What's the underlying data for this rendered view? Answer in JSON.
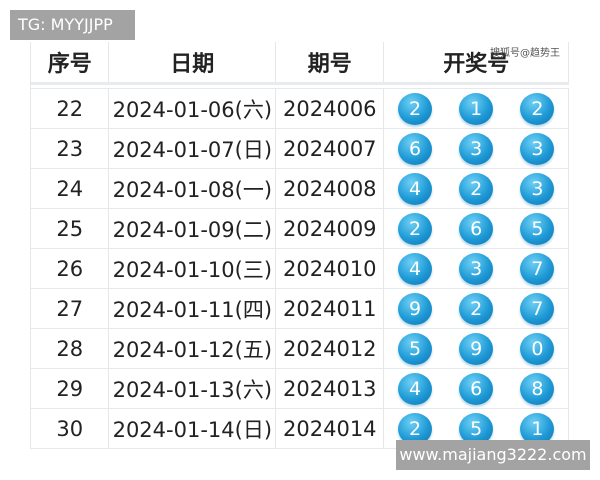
{
  "watermark_tg": "TG: MYYJJPP",
  "watermark_site": "www.majiang3222.com",
  "watermark_sohu": "搜狐号@趋势王",
  "headers": [
    "序号",
    "日期",
    "期号",
    "开奖号"
  ],
  "rows": [
    {
      "no": "22",
      "date": "2024-01-06(六)",
      "issue": "2024006",
      "balls": [
        "2",
        "1",
        "2"
      ]
    },
    {
      "no": "23",
      "date": "2024-01-07(日)",
      "issue": "2024007",
      "balls": [
        "6",
        "3",
        "3"
      ]
    },
    {
      "no": "24",
      "date": "2024-01-08(一)",
      "issue": "2024008",
      "balls": [
        "4",
        "2",
        "3"
      ]
    },
    {
      "no": "25",
      "date": "2024-01-09(二)",
      "issue": "2024009",
      "balls": [
        "2",
        "6",
        "5"
      ]
    },
    {
      "no": "26",
      "date": "2024-01-10(三)",
      "issue": "2024010",
      "balls": [
        "4",
        "3",
        "7"
      ]
    },
    {
      "no": "27",
      "date": "2024-01-11(四)",
      "issue": "2024011",
      "balls": [
        "9",
        "2",
        "7"
      ]
    },
    {
      "no": "28",
      "date": "2024-01-12(五)",
      "issue": "2024012",
      "balls": [
        "5",
        "9",
        "0"
      ]
    },
    {
      "no": "29",
      "date": "2024-01-13(六)",
      "issue": "2024013",
      "balls": [
        "4",
        "6",
        "8"
      ]
    },
    {
      "no": "30",
      "date": "2024-01-14(日)",
      "issue": "2024014",
      "balls": [
        "2",
        "5",
        "1"
      ]
    }
  ],
  "colors": {
    "ball": "#1e9ad6",
    "badge": "#a3a3a3"
  }
}
